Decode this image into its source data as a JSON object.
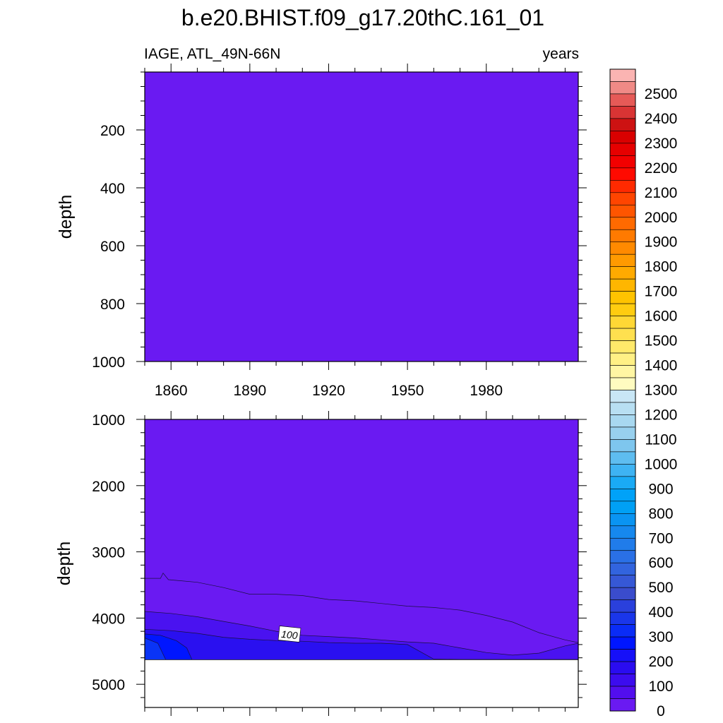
{
  "title": "b.e20.BHIST.f09_g17.20thC.161_01",
  "chart_data": [
    {
      "type": "heatmap",
      "panel": "upper",
      "left_label": "IAGE, ATL_49N-66N",
      "right_label": "years",
      "xlabel": "",
      "ylabel": "depth",
      "xlim": [
        1850,
        2015
      ],
      "ylim": [
        1000,
        0
      ],
      "x_ticks": [
        "1860",
        "1890",
        "1920",
        "1950",
        "1980"
      ],
      "y_ticks": [
        "200",
        "400",
        "600",
        "800",
        "1000"
      ],
      "fill_level": "0",
      "contours": []
    },
    {
      "type": "heatmap",
      "panel": "lower",
      "xlabel": "",
      "ylabel": "depth",
      "xlim": [
        1850,
        2015
      ],
      "ylim": [
        5350,
        1000
      ],
      "x_ticks": [
        "1860",
        "1890",
        "1920",
        "1950",
        "1980"
      ],
      "y_ticks": [
        "1000",
        "2000",
        "3000",
        "4000",
        "5000"
      ],
      "missing_below_depth": 4630,
      "contour_label": "100",
      "contours": [
        {
          "level": 0,
          "boundary": [
            [
              1850,
              3400
            ],
            [
              1856,
              3400
            ],
            [
              1857,
              3320
            ],
            [
              1859,
              3420
            ],
            [
              1870,
              3460
            ],
            [
              1880,
              3540
            ],
            [
              1890,
              3640
            ],
            [
              1900,
              3640
            ],
            [
              1910,
              3660
            ],
            [
              1920,
              3720
            ],
            [
              1930,
              3740
            ],
            [
              1940,
              3780
            ],
            [
              1950,
              3820
            ],
            [
              1960,
              3840
            ],
            [
              1970,
              3880
            ],
            [
              1980,
              3960
            ],
            [
              1990,
              4060
            ],
            [
              2000,
              4220
            ],
            [
              2010,
              4330
            ],
            [
              2015,
              4370
            ]
          ]
        },
        {
          "level": 100,
          "boundary": [
            [
              1850,
              3900
            ],
            [
              1860,
              3930
            ],
            [
              1870,
              3980
            ],
            [
              1880,
              4050
            ],
            [
              1890,
              4120
            ],
            [
              1900,
              4200
            ],
            [
              1910,
              4260
            ],
            [
              1920,
              4280
            ],
            [
              1930,
              4300
            ],
            [
              1940,
              4330
            ],
            [
              1950,
              4360
            ],
            [
              1960,
              4380
            ],
            [
              1970,
              4450
            ],
            [
              1980,
              4520
            ],
            [
              1990,
              4560
            ],
            [
              2000,
              4530
            ],
            [
              2010,
              4420
            ],
            [
              2015,
              4380
            ]
          ]
        },
        {
          "level": 200,
          "boundary": [
            [
              1850,
              4170
            ],
            [
              1860,
              4190
            ],
            [
              1870,
              4230
            ],
            [
              1880,
              4290
            ],
            [
              1890,
              4320
            ],
            [
              1900,
              4340
            ],
            [
              1910,
              4350
            ],
            [
              1920,
              4370
            ],
            [
              1930,
              4380
            ],
            [
              1940,
              4380
            ],
            [
              1950,
              4400
            ],
            [
              1960,
              4620
            ],
            [
              1970,
              4625
            ],
            [
              1980,
              4625
            ],
            [
              1990,
              4625
            ],
            [
              2000,
              4625
            ],
            [
              2015,
              4625
            ]
          ]
        },
        {
          "level": 250,
          "boundary": [
            [
              1850,
              4240
            ],
            [
              1856,
              4260
            ],
            [
              1862,
              4340
            ],
            [
              1866,
              4450
            ],
            [
              1868,
              4630
            ]
          ]
        },
        {
          "level": 300,
          "boundary": [
            [
              1850,
              4300
            ],
            [
              1855,
              4380
            ],
            [
              1858,
              4630
            ]
          ]
        }
      ]
    }
  ],
  "colorbar": {
    "labels": [
      "2500",
      "2400",
      "2300",
      "2200",
      "2100",
      "2000",
      "1900",
      "1800",
      "1700",
      "1600",
      "1500",
      "1400",
      "1300",
      "1200",
      "1100",
      "1000",
      "900",
      "800",
      "700",
      "600",
      "500",
      "400",
      "300",
      "200",
      "100",
      "0"
    ],
    "colors_top_to_bottom": [
      "#fbb4b2",
      "#f08a86",
      "#e65a57",
      "#d93434",
      "#cd1212",
      "#d90000",
      "#e60000",
      "#f20000",
      "#ff0a00",
      "#ff2a00",
      "#ff4500",
      "#ff5500",
      "#ff6a00",
      "#ff7a00",
      "#ff8a00",
      "#ff9a00",
      "#ffaa00",
      "#ffb600",
      "#ffc300",
      "#ffcc10",
      "#ffd735",
      "#ffe04f",
      "#ffe96a",
      "#fff085",
      "#fff6a3",
      "#fffbc0",
      "#c8e6f5",
      "#b8dff2",
      "#a8d8f0",
      "#98d0ee",
      "#7ec6ee",
      "#5ebdf0",
      "#3eb3f3",
      "#1aaaf5",
      "#00a2f8",
      "#00a0f5",
      "#0a94f2",
      "#1688ee",
      "#207cea",
      "#2a70e6",
      "#3264de",
      "#3658d6",
      "#3a4ccc",
      "#2a40dc",
      "#1a36ea",
      "#0a2cf6",
      "#0016ff",
      "#1610f8",
      "#2a0cf0",
      "#3c0cee",
      "#520eee",
      "#6a1af2"
    ]
  },
  "colors": {
    "base_fill": "#6a1af2",
    "level_0": "#6a1af2",
    "level_100": "#4a12f0",
    "level_200": "#2a10f0",
    "level_250": "#0016ff",
    "level_300": "#0a34f6",
    "missing": "#ffffff"
  }
}
